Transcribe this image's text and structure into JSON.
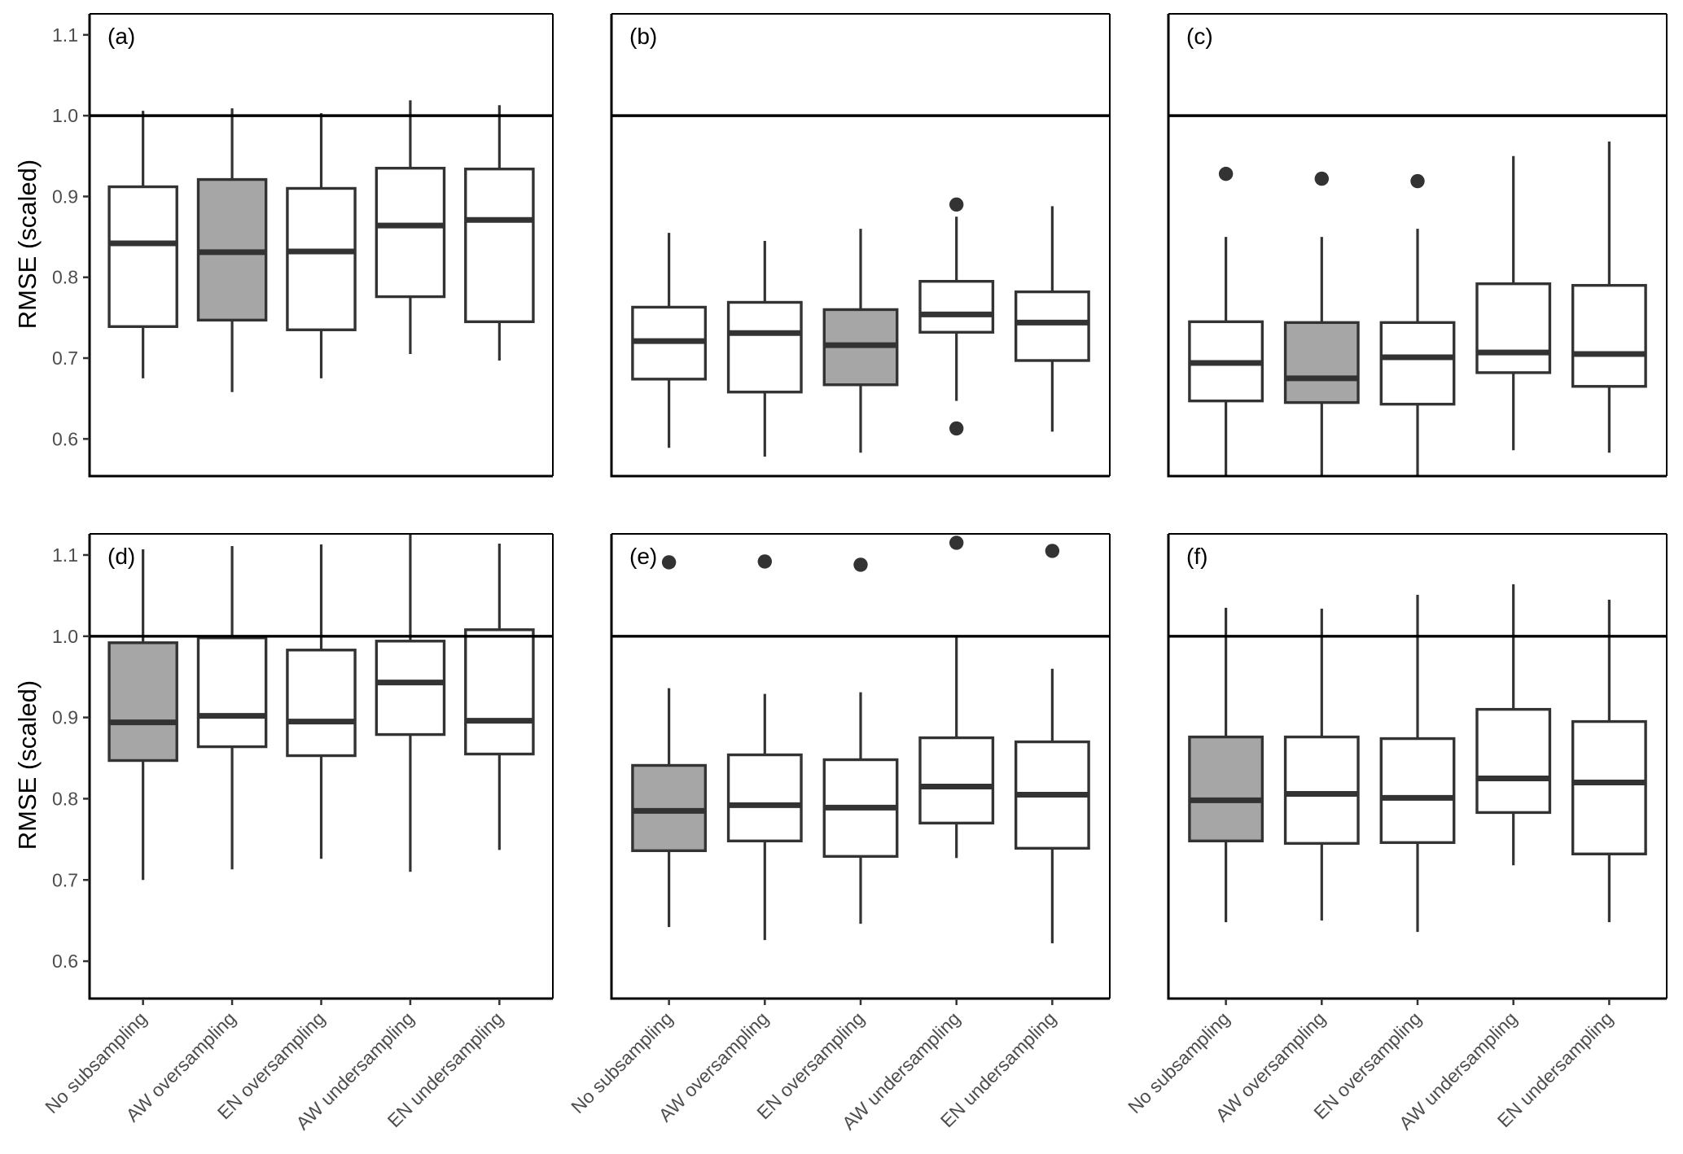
{
  "chart_data": {
    "type": "boxplot",
    "layout": "2x3 facet grid",
    "ylabel": "RMSE (scaled)",
    "xlabel": "",
    "categories": [
      "No subsampling",
      "AW oversampling",
      "EN oversampling",
      "AW undersampling",
      "EN undersampling"
    ],
    "ylim": [
      0.554,
      1.126
    ],
    "yticks": [
      "0.6",
      "0.7",
      "0.8",
      "0.9",
      "1.0",
      "1.1"
    ],
    "reference_line": 1.0,
    "colors": {
      "highlight_fill": "#a6a6a6",
      "default_fill": "#ffffff",
      "stroke": "#333333",
      "reference_line": "#000000"
    },
    "panels": [
      {
        "label": "(a)",
        "highlight": "AW oversampling",
        "boxes": [
          {
            "category": "No subsampling",
            "lower": 0.675,
            "q1": 0.739,
            "median": 0.842,
            "q3": 0.912,
            "upper": 1.006,
            "outliers": []
          },
          {
            "category": "AW oversampling",
            "lower": 0.658,
            "q1": 0.747,
            "median": 0.831,
            "q3": 0.921,
            "upper": 1.009,
            "outliers": []
          },
          {
            "category": "EN oversampling",
            "lower": 0.675,
            "q1": 0.735,
            "median": 0.832,
            "q3": 0.91,
            "upper": 1.003,
            "outliers": []
          },
          {
            "category": "AW undersampling",
            "lower": 0.705,
            "q1": 0.776,
            "median": 0.864,
            "q3": 0.935,
            "upper": 1.019,
            "outliers": []
          },
          {
            "category": "EN undersampling",
            "lower": 0.697,
            "q1": 0.745,
            "median": 0.871,
            "q3": 0.934,
            "upper": 1.013,
            "outliers": []
          }
        ]
      },
      {
        "label": "(b)",
        "highlight": "EN oversampling",
        "boxes": [
          {
            "category": "No subsampling",
            "lower": 0.589,
            "q1": 0.674,
            "median": 0.721,
            "q3": 0.763,
            "upper": 0.855,
            "outliers": []
          },
          {
            "category": "AW oversampling",
            "lower": 0.578,
            "q1": 0.658,
            "median": 0.731,
            "q3": 0.769,
            "upper": 0.845,
            "outliers": []
          },
          {
            "category": "EN oversampling",
            "lower": 0.583,
            "q1": 0.667,
            "median": 0.716,
            "q3": 0.76,
            "upper": 0.86,
            "outliers": []
          },
          {
            "category": "AW undersampling",
            "lower": 0.647,
            "q1": 0.732,
            "median": 0.754,
            "q3": 0.795,
            "upper": 0.875,
            "outliers": [
              0.89,
              0.613
            ]
          },
          {
            "category": "EN undersampling",
            "lower": 0.609,
            "q1": 0.697,
            "median": 0.744,
            "q3": 0.782,
            "upper": 0.888,
            "outliers": []
          }
        ]
      },
      {
        "label": "(c)",
        "highlight": "AW oversampling",
        "boxes": [
          {
            "category": "No subsampling",
            "lower": 0.54,
            "q1": 0.647,
            "median": 0.694,
            "q3": 0.745,
            "upper": 0.85,
            "outliers": [
              0.928
            ]
          },
          {
            "category": "AW oversampling",
            "lower": 0.54,
            "q1": 0.645,
            "median": 0.675,
            "q3": 0.744,
            "upper": 0.85,
            "outliers": [
              0.922
            ]
          },
          {
            "category": "EN oversampling",
            "lower": 0.54,
            "q1": 0.643,
            "median": 0.701,
            "q3": 0.744,
            "upper": 0.86,
            "outliers": [
              0.919
            ]
          },
          {
            "category": "AW undersampling",
            "lower": 0.586,
            "q1": 0.682,
            "median": 0.707,
            "q3": 0.792,
            "upper": 0.95,
            "outliers": []
          },
          {
            "category": "EN undersampling",
            "lower": 0.583,
            "q1": 0.665,
            "median": 0.705,
            "q3": 0.79,
            "upper": 0.968,
            "outliers": []
          }
        ]
      },
      {
        "label": "(d)",
        "highlight": "No subsampling",
        "boxes": [
          {
            "category": "No subsampling",
            "lower": 0.7,
            "q1": 0.847,
            "median": 0.894,
            "q3": 0.992,
            "upper": 1.107,
            "outliers": []
          },
          {
            "category": "AW oversampling",
            "lower": 0.713,
            "q1": 0.864,
            "median": 0.902,
            "q3": 0.998,
            "upper": 1.111,
            "outliers": []
          },
          {
            "category": "EN oversampling",
            "lower": 0.726,
            "q1": 0.853,
            "median": 0.895,
            "q3": 0.983,
            "upper": 1.113,
            "outliers": []
          },
          {
            "category": "AW undersampling",
            "lower": 0.71,
            "q1": 0.879,
            "median": 0.943,
            "q3": 0.994,
            "upper": 1.14,
            "outliers": []
          },
          {
            "category": "EN undersampling",
            "lower": 0.737,
            "q1": 0.855,
            "median": 0.896,
            "q3": 1.008,
            "upper": 1.114,
            "outliers": []
          }
        ]
      },
      {
        "label": "(e)",
        "highlight": "No subsampling",
        "boxes": [
          {
            "category": "No subsampling",
            "lower": 0.642,
            "q1": 0.736,
            "median": 0.785,
            "q3": 0.841,
            "upper": 0.936,
            "outliers": [
              1.091
            ]
          },
          {
            "category": "AW oversampling",
            "lower": 0.626,
            "q1": 0.748,
            "median": 0.792,
            "q3": 0.854,
            "upper": 0.929,
            "outliers": [
              1.092
            ]
          },
          {
            "category": "EN oversampling",
            "lower": 0.646,
            "q1": 0.729,
            "median": 0.789,
            "q3": 0.848,
            "upper": 0.931,
            "outliers": [
              1.088
            ]
          },
          {
            "category": "AW undersampling",
            "lower": 0.727,
            "q1": 0.77,
            "median": 0.815,
            "q3": 0.875,
            "upper": 1.0,
            "outliers": [
              1.115
            ]
          },
          {
            "category": "EN undersampling",
            "lower": 0.622,
            "q1": 0.739,
            "median": 0.805,
            "q3": 0.87,
            "upper": 0.96,
            "outliers": [
              1.105
            ]
          }
        ]
      },
      {
        "label": "(f)",
        "highlight": "No subsampling",
        "boxes": [
          {
            "category": "No subsampling",
            "lower": 0.648,
            "q1": 0.748,
            "median": 0.798,
            "q3": 0.876,
            "upper": 1.035,
            "outliers": []
          },
          {
            "category": "AW oversampling",
            "lower": 0.65,
            "q1": 0.745,
            "median": 0.806,
            "q3": 0.876,
            "upper": 1.034,
            "outliers": []
          },
          {
            "category": "EN oversampling",
            "lower": 0.636,
            "q1": 0.746,
            "median": 0.801,
            "q3": 0.874,
            "upper": 1.051,
            "outliers": []
          },
          {
            "category": "AW undersampling",
            "lower": 0.718,
            "q1": 0.783,
            "median": 0.825,
            "q3": 0.91,
            "upper": 1.064,
            "outliers": []
          },
          {
            "category": "EN undersampling",
            "lower": 0.648,
            "q1": 0.732,
            "median": 0.82,
            "q3": 0.895,
            "upper": 1.045,
            "outliers": []
          }
        ]
      }
    ]
  }
}
